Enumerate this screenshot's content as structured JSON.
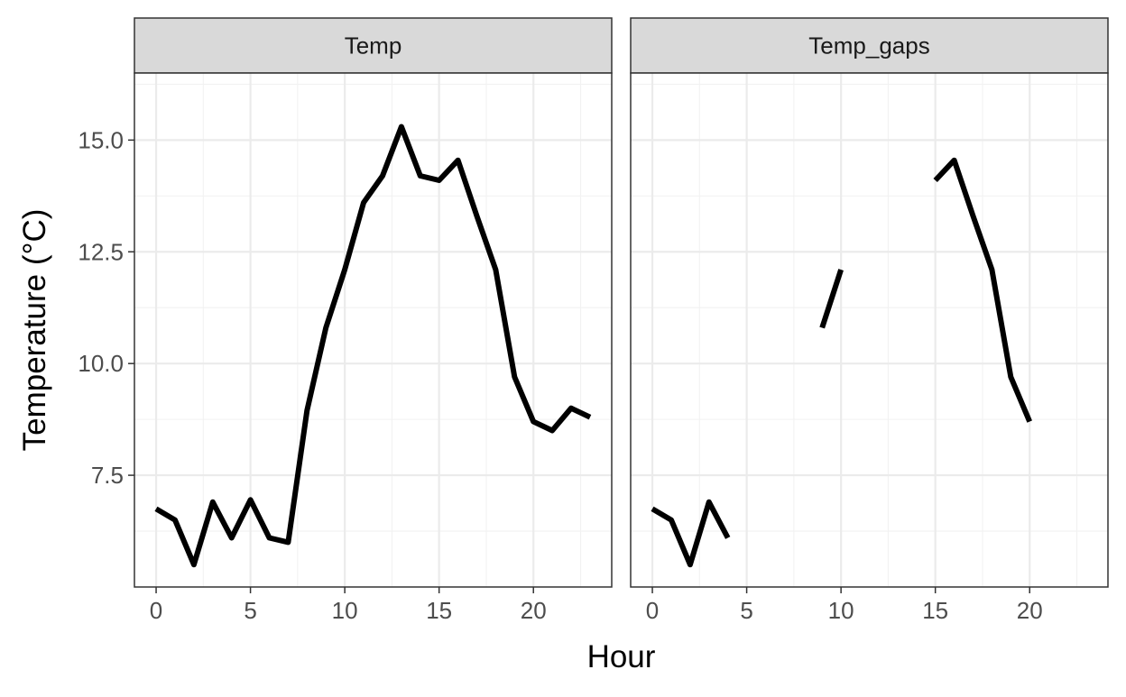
{
  "chart_data": {
    "type": "line",
    "xlabel": "Hour",
    "ylabel": "Temperature (°C)",
    "xlim": [
      -1.15,
      24.15
    ],
    "ylim": [
      5.0,
      16.5
    ],
    "x_ticks": [
      0,
      5,
      10,
      15,
      20
    ],
    "x_minor": [
      2.5,
      7.5,
      12.5,
      17.5,
      22.5
    ],
    "y_ticks": [
      7.5,
      10.0,
      12.5,
      15.0
    ],
    "y_tick_labels": [
      "7.5",
      "10.0",
      "12.5",
      "15.0"
    ],
    "y_minor": [
      6.25,
      8.75,
      11.25,
      13.75,
      16.25
    ],
    "grid": true,
    "panels": [
      {
        "strip_label": "Temp",
        "series": [
          {
            "x": [
              0,
              1,
              2,
              3,
              4,
              5,
              6,
              7,
              8,
              9,
              10,
              11,
              12,
              13,
              14,
              15,
              16,
              17,
              18,
              19,
              20,
              21,
              22,
              23
            ],
            "y": [
              6.75,
              6.5,
              5.5,
              6.9,
              6.1,
              6.95,
              6.1,
              6.0,
              8.95,
              10.8,
              12.1,
              13.6,
              14.2,
              15.3,
              14.2,
              14.1,
              14.55,
              13.3,
              12.1,
              9.7,
              8.7,
              8.5,
              9.0,
              8.8
            ]
          }
        ]
      },
      {
        "strip_label": "Temp_gaps",
        "series": [
          {
            "x": [
              0,
              1,
              2,
              3,
              4
            ],
            "y": [
              6.75,
              6.5,
              5.5,
              6.9,
              6.1
            ]
          },
          {
            "x": [
              9,
              10
            ],
            "y": [
              10.8,
              12.1
            ]
          },
          {
            "x": [
              15,
              16,
              17,
              18,
              19,
              20
            ],
            "y": [
              14.1,
              14.55,
              13.3,
              12.1,
              9.7,
              8.7
            ]
          }
        ]
      }
    ]
  }
}
